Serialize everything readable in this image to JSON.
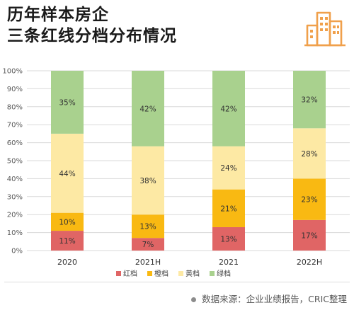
{
  "title": {
    "line1": "历年样本房企",
    "line2": "三条红线分档分布情况"
  },
  "source": "数据来源：企业业绩报告，CRIC整理",
  "logo_icon": "city-buildings-icon",
  "colors": {
    "red": "#e06565",
    "orange": "#f9b912",
    "yellow": "#fde9a4",
    "green": "#a9d18e",
    "accent": "#f0a04b"
  },
  "chart_data": {
    "type": "bar",
    "stacked": true,
    "percent": true,
    "categories": [
      "2020",
      "2021H",
      "2021",
      "2022H"
    ],
    "series": [
      {
        "name": "红档",
        "color": "#e06565",
        "values": [
          11,
          7,
          13,
          17
        ],
        "labels": [
          "11%",
          "7%",
          "13%",
          "17%"
        ]
      },
      {
        "name": "橙档",
        "color": "#f9b912",
        "values": [
          10,
          13,
          21,
          23
        ],
        "labels": [
          "10%",
          "13%",
          "21%",
          "23%"
        ]
      },
      {
        "name": "黄档",
        "color": "#fde9a4",
        "values": [
          44,
          38,
          24,
          28
        ],
        "labels": [
          "44%",
          "38%",
          "24%",
          "28%"
        ]
      },
      {
        "name": "绿档",
        "color": "#a9d18e",
        "values": [
          35,
          42,
          42,
          32
        ],
        "labels": [
          "35%",
          "42%",
          "42%",
          "32%"
        ]
      }
    ],
    "yticks": [
      "0%",
      "10%",
      "20%",
      "30%",
      "40%",
      "50%",
      "60%",
      "70%",
      "80%",
      "90%",
      "100%"
    ],
    "ylim": [
      0,
      100
    ],
    "grid": true,
    "legend_position": "bottom"
  }
}
